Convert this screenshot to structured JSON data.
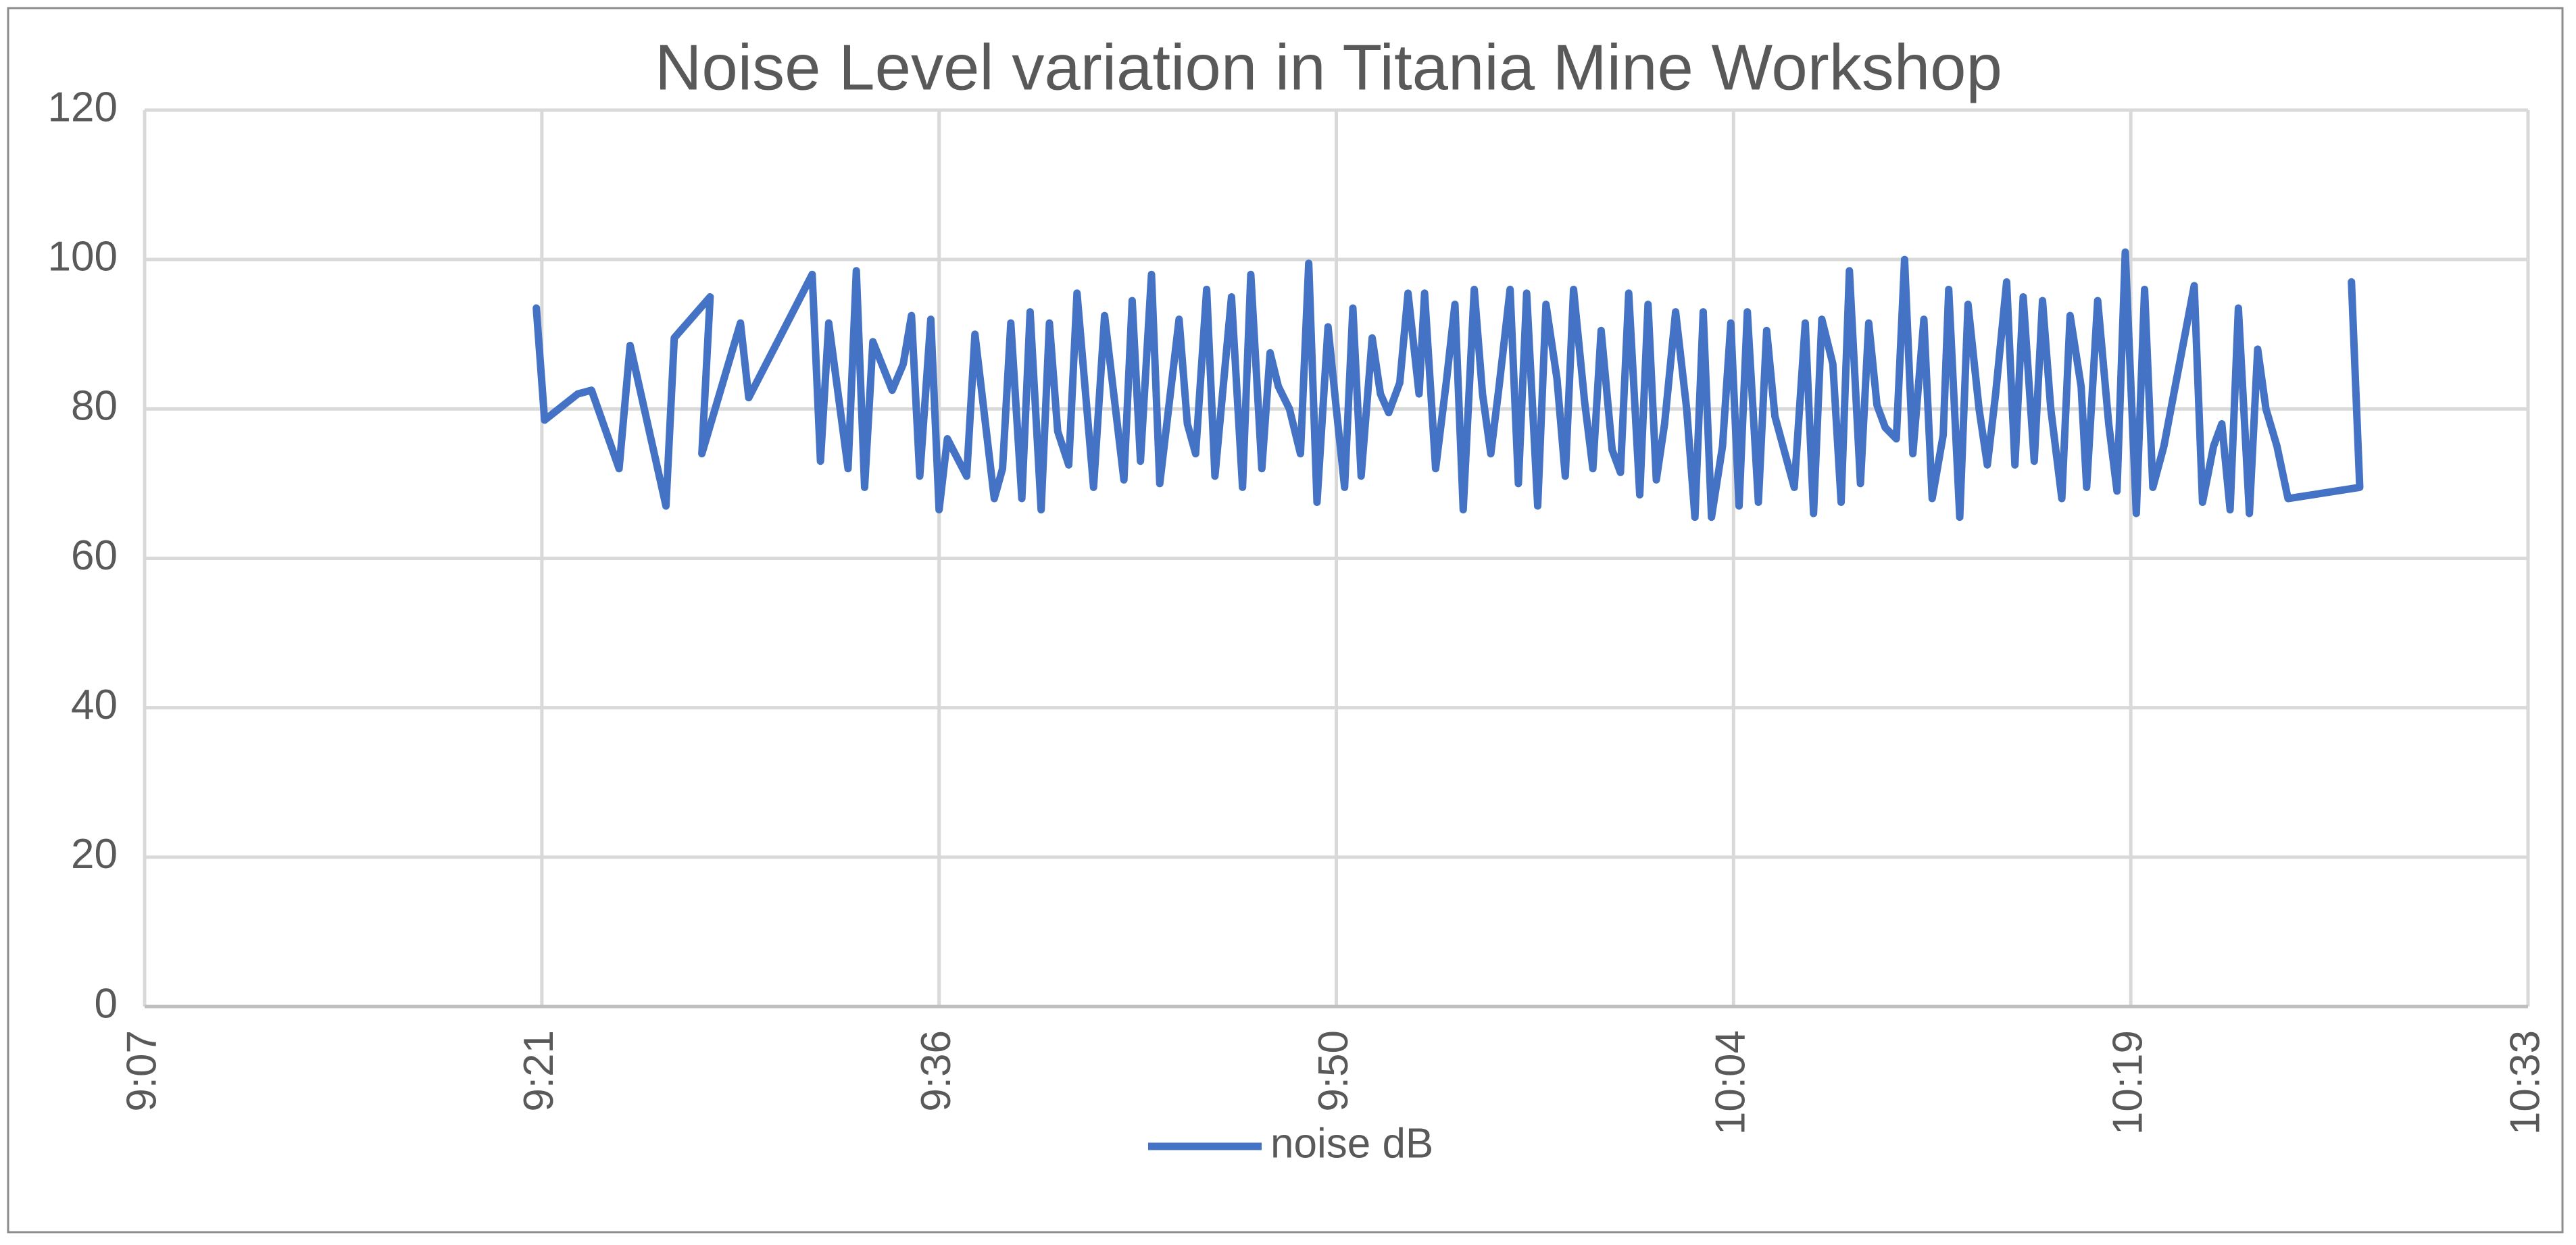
{
  "chart_data": {
    "type": "line",
    "title": "Noise Level variation in Titania Mine Workshop",
    "x": [
      561.4,
      561.7,
      562.9,
      563.4,
      564.4,
      564.8,
      566.1,
      566.4,
      567.7,
      567.4,
      568.8,
      569.1,
      571.4,
      571.7,
      572.0,
      572.7,
      573.0,
      573.3,
      573.6,
      574.3,
      574.7,
      575.0,
      575.3,
      575.7,
      576.0,
      576.3,
      577.0,
      577.3,
      578.0,
      578.3,
      578.6,
      579.0,
      579.3,
      579.7,
      580.0,
      580.3,
      580.7,
      581.0,
      581.6,
      582.0,
      582.3,
      582.7,
      583.0,
      583.3,
      583.7,
      584.0,
      584.7,
      585.0,
      585.3,
      585.7,
      586.0,
      586.6,
      587.0,
      587.3,
      587.7,
      588.0,
      588.3,
      588.7,
      589.1,
      589.4,
      589.7,
      590.1,
      590.4,
      590.7,
      591.0,
      591.3,
      591.7,
      592.0,
      592.3,
      592.7,
      593.0,
      593.4,
      593.6,
      594.0,
      594.4,
      594.7,
      595.0,
      595.4,
      595.7,
      596.0,
      596.3,
      596.7,
      597.0,
      597.3,
      597.7,
      598.0,
      598.4,
      598.7,
      599.0,
      599.4,
      599.7,
      600.0,
      600.4,
      600.7,
      601.0,
      601.4,
      601.7,
      602.0,
      602.3,
      602.7,
      603.1,
      603.4,
      603.7,
      604.0,
      604.4,
      604.7,
      605.0,
      605.3,
      605.7,
      606.0,
      606.3,
      607.0,
      607.4,
      607.7,
      608.0,
      608.4,
      608.7,
      609.0,
      609.4,
      609.7,
      610.0,
      610.3,
      610.7,
      611.0,
      611.3,
      611.7,
      612.0,
      612.4,
      612.6,
      613.0,
      613.3,
      613.7,
      614.0,
      614.3,
      614.7,
      615.0,
      615.3,
      615.7,
      616.0,
      616.3,
      616.7,
      617.0,
      617.4,
      617.6,
      618.0,
      618.4,
      618.7,
      619.0,
      619.4,
      619.7,
      620.0,
      620.4,
      621.5,
      621.8,
      622.2,
      622.5,
      622.8,
      623.1,
      623.5,
      623.8,
      624.1,
      624.5,
      624.9,
      627.5,
      627.2
    ],
    "series": [
      {
        "name": "noise dB",
        "color": "#4472c4",
        "values": [
          93.5,
          78.5,
          82,
          82.5,
          72,
          88.5,
          67,
          89.5,
          95,
          74,
          91.5,
          81.5,
          98,
          73,
          91.5,
          72,
          98.5,
          69.5,
          89,
          82.5,
          86,
          92.5,
          71,
          92,
          66.5,
          76,
          71,
          90,
          68,
          72,
          91.5,
          68,
          93,
          66.5,
          91.5,
          77,
          72.5,
          95.5,
          69.5,
          92.5,
          83,
          70.5,
          94.5,
          73,
          98,
          70,
          92,
          78,
          74,
          96,
          71,
          95,
          69.5,
          98,
          72,
          87.5,
          83,
          80,
          74,
          99.5,
          67.5,
          91,
          80,
          69.5,
          93.5,
          71,
          89.5,
          82,
          79.5,
          83.5,
          95.5,
          82,
          95.5,
          72,
          84,
          94,
          66.5,
          96,
          82,
          74,
          83,
          96,
          70,
          95.5,
          67,
          94,
          84,
          71,
          96,
          81,
          72,
          90.5,
          74.5,
          71.5,
          95.5,
          68.5,
          94,
          70.5,
          78,
          93,
          80,
          65.5,
          93,
          65.5,
          75,
          91.5,
          67,
          93,
          67.5,
          90.5,
          79,
          69.5,
          91.5,
          66,
          92,
          86,
          67.5,
          98.5,
          70,
          91.5,
          80.5,
          77.5,
          76,
          100,
          74,
          92,
          68,
          76.5,
          96,
          65.5,
          94,
          80,
          72.5,
          82,
          97,
          72.5,
          95,
          73,
          94.5,
          80,
          68,
          92.5,
          83,
          69.5,
          94.5,
          78,
          69,
          101,
          66,
          96,
          69.5,
          75,
          96.5,
          67.5,
          75,
          78,
          66.5,
          93.5,
          66,
          88,
          80,
          75,
          68,
          69.5,
          97
        ]
      }
    ],
    "xlim": [
      547.2,
      633.6
    ],
    "xticks": [
      {
        "value": 547.2,
        "label": "9:07"
      },
      {
        "value": 561.6,
        "label": "9:21"
      },
      {
        "value": 576,
        "label": "9:36"
      },
      {
        "value": 590.4,
        "label": "9:50"
      },
      {
        "value": 604.8,
        "label": "10:04"
      },
      {
        "value": 619.2,
        "label": "10:19"
      },
      {
        "value": 633.6,
        "label": "10:33"
      }
    ],
    "ylim": [
      0,
      120
    ],
    "yticks": [
      0,
      20,
      40,
      60,
      80,
      100,
      120
    ],
    "grid": true,
    "legend": "bottom"
  }
}
